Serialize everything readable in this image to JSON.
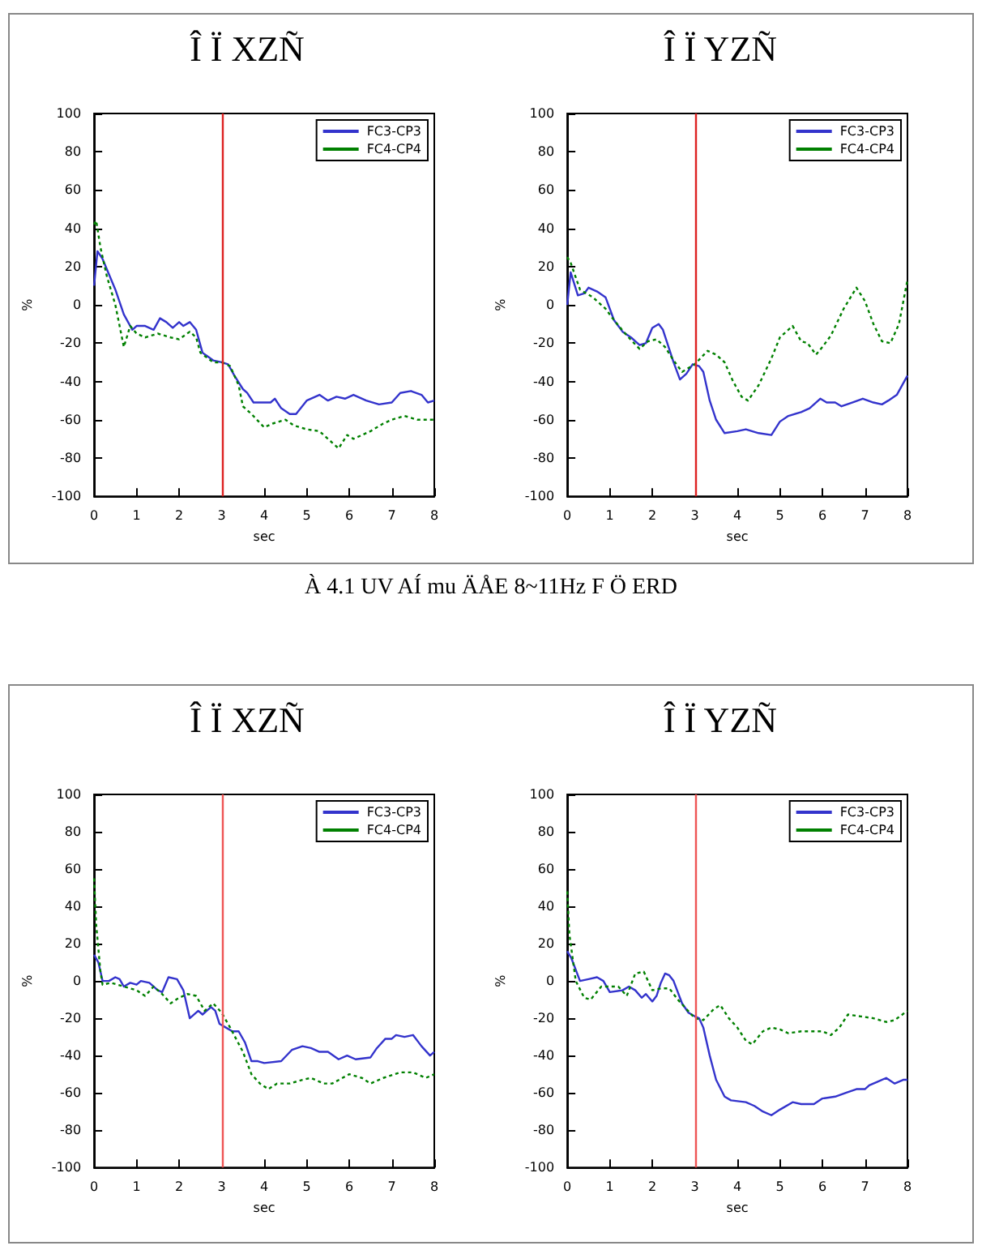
{
  "chart_data": [
    {
      "type": "line",
      "title": "Î Ï XZÑ",
      "xlabel": "sec",
      "ylabel": "%",
      "xlim": [
        0,
        8
      ],
      "xticks": [
        0,
        1,
        2,
        3,
        4,
        5,
        6,
        7,
        8
      ],
      "ylim": [
        -100,
        100
      ],
      "yticks": [
        -100,
        -80,
        -60,
        -40,
        -20,
        0,
        20,
        40,
        60,
        80,
        100
      ],
      "legend": "top right",
      "grid": false,
      "marker": "none",
      "annotations": [
        "À 4.1 UV AÍ mu ÄÅE 8~11Hz F Ö ERD"
      ],
      "ref_lines": [
        {
          "axis": "x",
          "value": 3,
          "color": "#dd2222"
        }
      ],
      "series": [
        {
          "name": "FC3-CP3",
          "color": "#3333cc",
          "line_style": "solid",
          "x": [
            0,
            0.08,
            0.2,
            0.5,
            0.7,
            0.9,
            1.0,
            1.2,
            1.4,
            1.55,
            1.7,
            1.85,
            2.0,
            2.1,
            2.25,
            2.4,
            2.55,
            2.8,
            3.0,
            3.15,
            3.3,
            3.5,
            3.6,
            3.75,
            4.0,
            4.15,
            4.25,
            4.4,
            4.6,
            4.75,
            5.0,
            5.3,
            5.5,
            5.7,
            5.9,
            6.1,
            6.4,
            6.7,
            7.0,
            7.2,
            7.45,
            7.7,
            7.85,
            8.0
          ],
          "values": [
            10,
            28,
            24,
            8,
            -5,
            -13,
            -11,
            -11,
            -13,
            -7,
            -9,
            -12,
            -9,
            -11,
            -9,
            -13,
            -25,
            -29,
            -30,
            -31,
            -37,
            -44,
            -46,
            -51,
            -51,
            -51,
            -49,
            -54,
            -57,
            -57,
            -50,
            -47,
            -50,
            -48,
            -49,
            -47,
            -50,
            -52,
            -51,
            -46,
            -45,
            -47,
            -51,
            -50
          ]
        },
        {
          "name": "FC4-CP4",
          "color": "#008000",
          "line_style": "dotted",
          "x": [
            0,
            0.05,
            0.15,
            0.3,
            0.5,
            0.7,
            0.85,
            1.0,
            1.2,
            1.5,
            1.8,
            2.0,
            2.25,
            2.4,
            2.5,
            2.8,
            3.0,
            3.2,
            3.4,
            3.5,
            3.7,
            4.0,
            4.2,
            4.5,
            4.7,
            5.0,
            5.3,
            5.6,
            5.75,
            5.95,
            6.1,
            6.5,
            6.8,
            7.0,
            7.3,
            7.6,
            8.0
          ],
          "values": [
            42,
            44,
            30,
            15,
            0,
            -22,
            -11,
            -15,
            -17,
            -15,
            -17,
            -18,
            -14,
            -17,
            -25,
            -30,
            -30,
            -32,
            -42,
            -53,
            -57,
            -64,
            -62,
            -60,
            -63,
            -65,
            -66,
            -72,
            -75,
            -68,
            -70,
            -66,
            -62,
            -60,
            -58,
            -60,
            -60
          ]
        }
      ]
    },
    {
      "type": "line",
      "title": "Î Ï YZÑ",
      "xlabel": "sec",
      "ylabel": "%",
      "xlim": [
        0,
        8
      ],
      "xticks": [
        0,
        1,
        2,
        3,
        4,
        5,
        6,
        7,
        8
      ],
      "ylim": [
        -100,
        100
      ],
      "yticks": [
        -100,
        -80,
        -60,
        -40,
        -20,
        0,
        20,
        40,
        60,
        80,
        100
      ],
      "legend": "top right",
      "grid": false,
      "marker": "none",
      "ref_lines": [
        {
          "axis": "x",
          "value": 3,
          "color": "#dd2222"
        }
      ],
      "series": [
        {
          "name": "FC3-CP3",
          "color": "#3333cc",
          "line_style": "solid",
          "x": [
            0,
            0.08,
            0.25,
            0.4,
            0.5,
            0.7,
            0.9,
            1.1,
            1.3,
            1.5,
            1.7,
            1.85,
            2.0,
            2.15,
            2.25,
            2.5,
            2.65,
            2.8,
            2.95,
            3.1,
            3.2,
            3.35,
            3.5,
            3.7,
            4.0,
            4.2,
            4.5,
            4.8,
            5.0,
            5.2,
            5.5,
            5.7,
            5.95,
            6.1,
            6.3,
            6.45,
            6.7,
            6.95,
            7.2,
            7.4,
            7.55,
            7.75,
            8.0
          ],
          "values": [
            0,
            17,
            5,
            6,
            9,
            7,
            4,
            -8,
            -14,
            -17,
            -21,
            -20,
            -12,
            -10,
            -13,
            -30,
            -39,
            -36,
            -31,
            -32,
            -35,
            -50,
            -60,
            -67,
            -66,
            -65,
            -67,
            -68,
            -61,
            -58,
            -56,
            -54,
            -49,
            -51,
            -51,
            -53,
            -51,
            -49,
            -51,
            -52,
            -50,
            -47,
            -37
          ]
        },
        {
          "name": "FC4-CP4",
          "color": "#008000",
          "line_style": "dotted",
          "x": [
            0,
            0.08,
            0.3,
            0.6,
            0.9,
            1.1,
            1.4,
            1.7,
            1.9,
            2.1,
            2.3,
            2.5,
            2.7,
            2.85,
            3.0,
            3.3,
            3.5,
            3.7,
            3.9,
            4.1,
            4.25,
            4.5,
            4.8,
            5.0,
            5.15,
            5.3,
            5.5,
            5.65,
            5.85,
            6.0,
            6.2,
            6.5,
            6.8,
            7.0,
            7.2,
            7.4,
            7.6,
            7.8,
            8.0
          ],
          "values": [
            25,
            22,
            8,
            4,
            -2,
            -8,
            -16,
            -23,
            -19,
            -18,
            -22,
            -29,
            -35,
            -33,
            -31,
            -24,
            -26,
            -30,
            -40,
            -48,
            -50,
            -42,
            -28,
            -17,
            -14,
            -11,
            -19,
            -20,
            -26,
            -22,
            -16,
            -2,
            9,
            2,
            -10,
            -19,
            -20,
            -10,
            13
          ]
        }
      ]
    },
    {
      "type": "line",
      "title": "Î Ï XZÑ",
      "xlabel": "sec",
      "ylabel": "%",
      "xlim": [
        0,
        8
      ],
      "xticks": [
        0,
        1,
        2,
        3,
        4,
        5,
        6,
        7,
        8
      ],
      "ylim": [
        -100,
        100
      ],
      "yticks": [
        -100,
        -80,
        -60,
        -40,
        -20,
        0,
        20,
        40,
        60,
        80,
        100
      ],
      "legend": "top right",
      "grid": false,
      "marker": "none",
      "ref_lines": [
        {
          "axis": "x",
          "value": 3,
          "color": "#ee5555"
        }
      ],
      "series": [
        {
          "name": "FC3-CP3",
          "color": "#3333cc",
          "line_style": "solid",
          "x": [
            0,
            0.1,
            0.2,
            0.35,
            0.5,
            0.6,
            0.7,
            0.85,
            1.0,
            1.1,
            1.3,
            1.5,
            1.6,
            1.75,
            1.95,
            2.1,
            2.25,
            2.45,
            2.55,
            2.75,
            2.85,
            2.95,
            3.1,
            3.25,
            3.4,
            3.55,
            3.7,
            3.85,
            4.0,
            4.4,
            4.65,
            4.9,
            5.1,
            5.3,
            5.5,
            5.75,
            5.95,
            6.15,
            6.5,
            6.65,
            6.85,
            7.0,
            7.1,
            7.3,
            7.5,
            7.7,
            7.9,
            8.0
          ],
          "values": [
            14,
            10,
            0,
            0,
            2,
            1,
            -3,
            -1,
            -2,
            0,
            -1,
            -5,
            -6,
            2,
            1,
            -5,
            -20,
            -16,
            -18,
            -14,
            -16,
            -23,
            -25,
            -27,
            -27,
            -33,
            -43,
            -43,
            -44,
            -43,
            -37,
            -35,
            -36,
            -38,
            -38,
            -42,
            -40,
            -42,
            -41,
            -36,
            -31,
            -31,
            -29,
            -30,
            -29,
            -35,
            -40,
            -38
          ]
        },
        {
          "name": "FC4-CP4",
          "color": "#008000",
          "line_style": "dotted",
          "x": [
            0,
            0.05,
            0.15,
            0.2,
            0.4,
            0.7,
            1.0,
            1.2,
            1.4,
            1.6,
            1.8,
            2.0,
            2.2,
            2.4,
            2.6,
            2.8,
            3.0,
            3.2,
            3.5,
            3.7,
            3.9,
            4.1,
            4.3,
            4.6,
            4.9,
            5.1,
            5.4,
            5.6,
            6.0,
            6.3,
            6.5,
            6.8,
            7.2,
            7.5,
            7.8,
            8.0
          ],
          "values": [
            55,
            30,
            5,
            -2,
            -1,
            -3,
            -5,
            -8,
            -3,
            -7,
            -12,
            -9,
            -7,
            -8,
            -16,
            -12,
            -17,
            -25,
            -38,
            -50,
            -55,
            -58,
            -55,
            -55,
            -53,
            -52,
            -55,
            -55,
            -50,
            -52,
            -55,
            -52,
            -49,
            -49,
            -52,
            -50
          ]
        }
      ]
    },
    {
      "type": "line",
      "title": "Î Ï YZÑ",
      "xlabel": "sec",
      "ylabel": "%",
      "xlim": [
        0,
        8
      ],
      "xticks": [
        0,
        1,
        2,
        3,
        4,
        5,
        6,
        7,
        8
      ],
      "ylim": [
        -100,
        100
      ],
      "yticks": [
        -100,
        -80,
        -60,
        -40,
        -20,
        0,
        20,
        40,
        60,
        80,
        100
      ],
      "legend": "top right",
      "grid": false,
      "marker": "none",
      "ref_lines": [
        {
          "axis": "x",
          "value": 3,
          "color": "#ee5555"
        }
      ],
      "series": [
        {
          "name": "FC3-CP3",
          "color": "#3333cc",
          "line_style": "solid",
          "x": [
            0,
            0.1,
            0.3,
            0.5,
            0.7,
            0.85,
            1.0,
            1.3,
            1.45,
            1.6,
            1.75,
            1.85,
            2.0,
            2.1,
            2.2,
            2.3,
            2.4,
            2.5,
            2.7,
            2.85,
            3.0,
            3.1,
            3.2,
            3.35,
            3.5,
            3.7,
            3.85,
            4.2,
            4.4,
            4.6,
            4.8,
            5.0,
            5.3,
            5.5,
            5.8,
            6.0,
            6.3,
            6.55,
            6.8,
            7.0,
            7.1,
            7.3,
            7.5,
            7.7,
            7.9,
            8.0
          ],
          "values": [
            16,
            12,
            0,
            1,
            2,
            0,
            -6,
            -5,
            -3,
            -5,
            -9,
            -7,
            -11,
            -8,
            -1,
            4,
            3,
            0,
            -12,
            -17,
            -19,
            -20,
            -25,
            -40,
            -53,
            -62,
            -64,
            -65,
            -67,
            -70,
            -72,
            -69,
            -65,
            -66,
            -66,
            -63,
            -62,
            -60,
            -58,
            -58,
            -56,
            -54,
            -52,
            -55,
            -53,
            -53
          ]
        },
        {
          "name": "FC4-CP4",
          "color": "#008000",
          "line_style": "dotted",
          "x": [
            0,
            0.05,
            0.2,
            0.4,
            0.55,
            0.8,
            1.0,
            1.2,
            1.4,
            1.6,
            1.8,
            2.0,
            2.2,
            2.4,
            2.6,
            2.8,
            3.0,
            3.2,
            3.45,
            3.6,
            3.8,
            4.0,
            4.2,
            4.35,
            4.6,
            4.8,
            5.0,
            5.2,
            5.5,
            5.8,
            6.0,
            6.2,
            6.4,
            6.6,
            6.9,
            7.2,
            7.5,
            7.7,
            8.0
          ],
          "values": [
            48,
            25,
            0,
            -9,
            -10,
            -3,
            -3,
            -3,
            -8,
            4,
            5,
            -5,
            -4,
            -4,
            -10,
            -15,
            -20,
            -21,
            -15,
            -13,
            -20,
            -25,
            -32,
            -34,
            -27,
            -25,
            -26,
            -28,
            -27,
            -27,
            -27,
            -29,
            -25,
            -18,
            -19,
            -20,
            -22,
            -21,
            -16
          ]
        }
      ]
    }
  ]
}
